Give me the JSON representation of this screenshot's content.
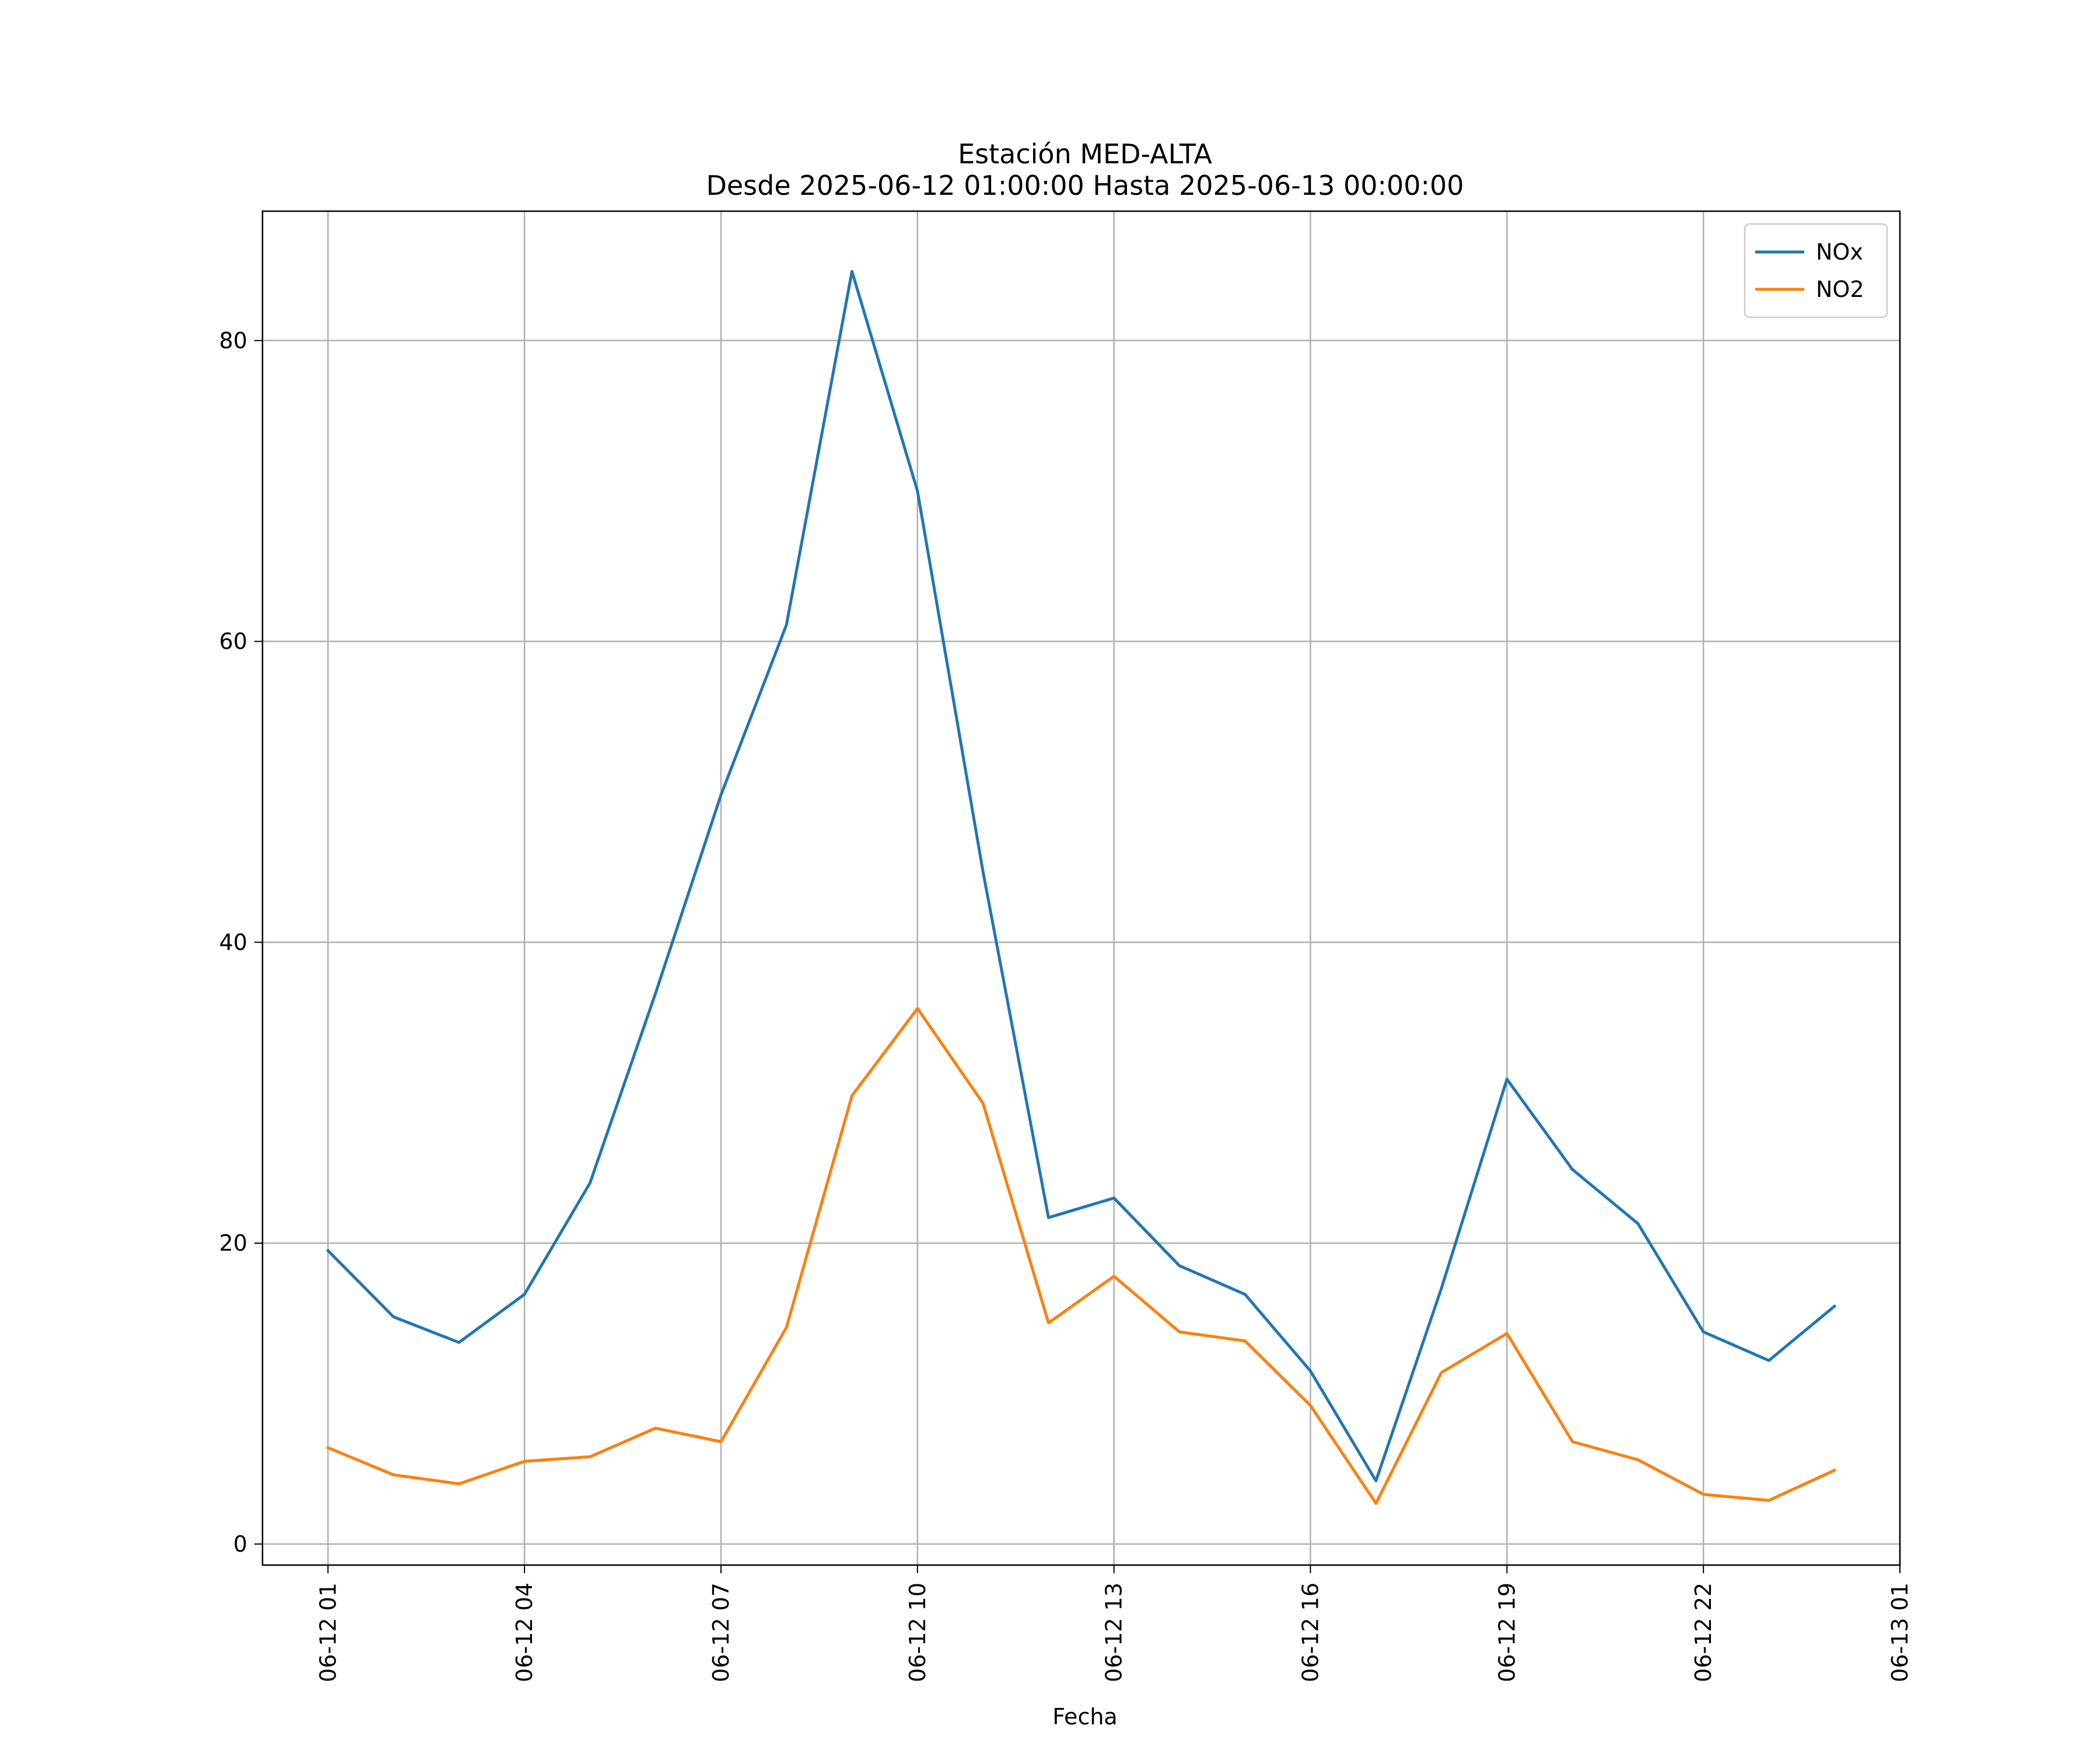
{
  "chart_data": {
    "type": "line",
    "title": "Estación MED-ALTA",
    "subtitle": "Desde 2025-06-12 01:00:00 Hasta 2025-06-13 00:00:00",
    "xlabel": "Fecha",
    "ylabel": "",
    "x_range": [
      "2025-06-12 00:00",
      "2025-06-13 01:00"
    ],
    "ylim": [
      -1.4,
      88.6
    ],
    "x_ticks": [
      "2025-06-12 01:00",
      "2025-06-12 04:00",
      "2025-06-12 07:00",
      "2025-06-12 10:00",
      "2025-06-12 13:00",
      "2025-06-12 16:00",
      "2025-06-12 19:00",
      "2025-06-12 22:00",
      "2025-06-13 01:00"
    ],
    "x_tick_labels": [
      "06-12 01",
      "06-12 04",
      "06-12 07",
      "06-12 10",
      "06-12 13",
      "06-12 16",
      "06-12 19",
      "06-12 22",
      "06-13 01"
    ],
    "y_ticks": [
      0,
      20,
      40,
      60,
      80
    ],
    "y_tick_labels": [
      "0",
      "20",
      "40",
      "60",
      "80"
    ],
    "grid": true,
    "legend_position": "top-right",
    "x": [
      "2025-06-12 01:00",
      "2025-06-12 02:00",
      "2025-06-12 03:00",
      "2025-06-12 04:00",
      "2025-06-12 05:00",
      "2025-06-12 06:00",
      "2025-06-12 07:00",
      "2025-06-12 08:00",
      "2025-06-12 09:00",
      "2025-06-12 10:00",
      "2025-06-12 11:00",
      "2025-06-12 12:00",
      "2025-06-12 13:00",
      "2025-06-12 14:00",
      "2025-06-12 15:00",
      "2025-06-12 16:00",
      "2025-06-12 17:00",
      "2025-06-12 18:00",
      "2025-06-12 19:00",
      "2025-06-12 20:00",
      "2025-06-12 21:00",
      "2025-06-12 22:00",
      "2025-06-12 23:00",
      "2025-06-13 00:00"
    ],
    "series": [
      {
        "name": "NOx",
        "color": "#1f77b4",
        "values": [
          19.5,
          15.1,
          13.4,
          16.6,
          24.0,
          36.6,
          49.8,
          61.1,
          84.6,
          70.0,
          44.7,
          21.7,
          23.0,
          18.5,
          16.6,
          11.5,
          4.2,
          17.0,
          30.9,
          24.9,
          21.3,
          14.1,
          12.2,
          15.8
        ]
      },
      {
        "name": "NO2",
        "color": "#ff7f0e",
        "values": [
          6.4,
          4.6,
          4.0,
          5.5,
          5.8,
          7.7,
          6.8,
          14.4,
          29.8,
          35.6,
          29.3,
          14.7,
          17.8,
          14.1,
          13.5,
          9.2,
          2.7,
          11.4,
          14.0,
          6.8,
          5.6,
          3.3,
          2.9,
          4.9
        ]
      }
    ]
  }
}
